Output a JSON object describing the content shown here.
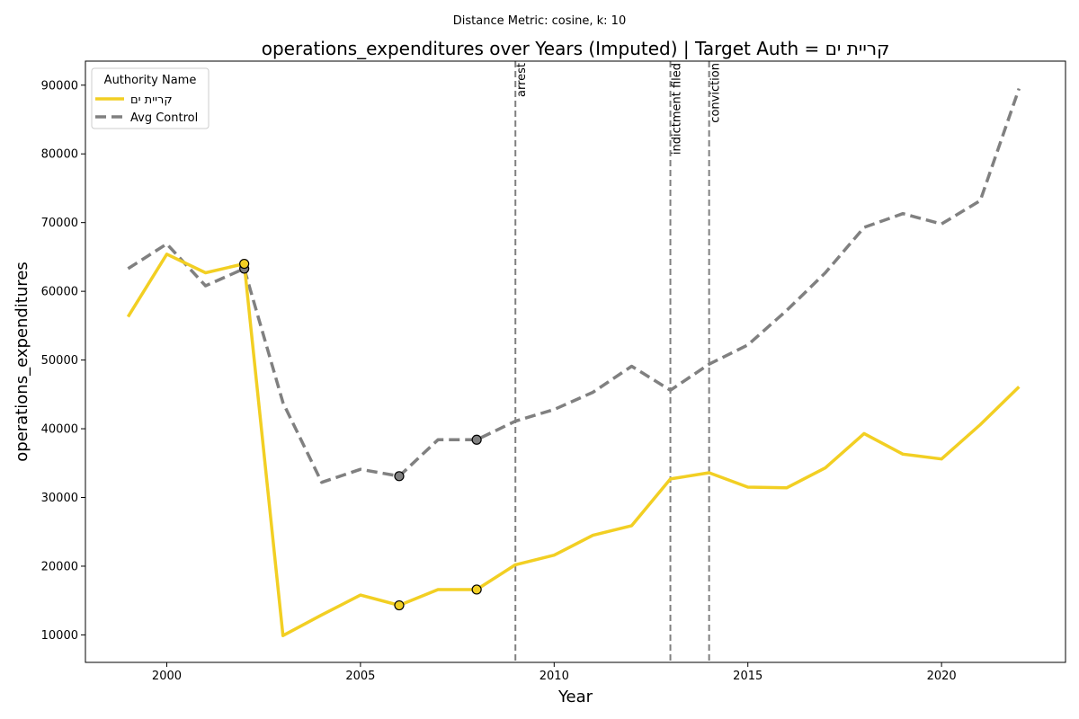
{
  "chart_data": {
    "type": "line",
    "suptitle": "Distance Metric: cosine, k: 10",
    "title": "operations_expenditures over Years (Imputed) | Target Auth = קריית ים",
    "xlabel": "Year",
    "ylabel": "operations_expenditures",
    "xlim": [
      1997.9,
      2023.2
    ],
    "ylim": [
      6000,
      93500
    ],
    "xticks": [
      2000,
      2005,
      2010,
      2015,
      2020
    ],
    "yticks": [
      10000,
      20000,
      30000,
      40000,
      50000,
      60000,
      70000,
      80000,
      90000
    ],
    "legend": {
      "title": "Authority Name",
      "position": "upper-left"
    },
    "x": [
      1999,
      2000,
      2001,
      2002,
      2003,
      2004,
      2005,
      2006,
      2007,
      2008,
      2009,
      2010,
      2011,
      2012,
      2013,
      2014,
      2015,
      2016,
      2017,
      2018,
      2019,
      2020,
      2021,
      2022
    ],
    "series": [
      {
        "name": "קריית ים",
        "color": "#f2cf23",
        "style": "solid",
        "values": [
          56300,
          65400,
          62700,
          64000,
          9900,
          12900,
          15800,
          14300,
          16600,
          16600,
          20200,
          21600,
          24500,
          25900,
          32700,
          33600,
          31500,
          31400,
          34300,
          39300,
          36300,
          35600,
          40600,
          46100
        ],
        "imputed_years": [
          2002,
          2006,
          2008
        ]
      },
      {
        "name": "Avg Control",
        "color": "#808080",
        "style": "dashed",
        "values": [
          63300,
          66900,
          60800,
          63300,
          43800,
          32200,
          34100,
          33100,
          38400,
          38400,
          41100,
          42800,
          45300,
          49100,
          45600,
          49400,
          52200,
          57200,
          62700,
          69300,
          71300,
          69800,
          73200,
          89500
        ],
        "imputed_years": [
          2002,
          2006,
          2008
        ]
      }
    ],
    "events": [
      {
        "year": 2009,
        "label": "arrest"
      },
      {
        "year": 2013,
        "label": "indictment filed"
      },
      {
        "year": 2014,
        "label": "conviction"
      }
    ],
    "grid": false
  }
}
